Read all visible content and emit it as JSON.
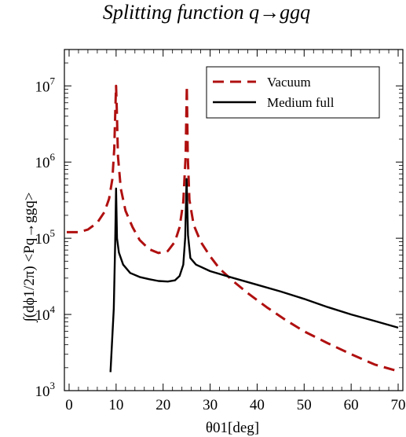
{
  "chart_data": {
    "type": "line",
    "title": "Splitting function q→ggq",
    "xlabel": "θ01[deg]",
    "ylabel": "∫(dϕ1/2π) <Pq→ggq>",
    "xlim": [
      -1,
      71
    ],
    "ylim": [
      1000,
      30000000
    ],
    "y_scale": "log",
    "grid": false,
    "legend_placement": "top-right",
    "x_ticks": [
      0,
      10,
      20,
      30,
      40,
      50,
      60,
      70
    ],
    "y_ticks": [
      {
        "value": 1000,
        "label": "10^3"
      },
      {
        "value": 10000,
        "label": "10^4"
      },
      {
        "value": 100000,
        "label": "10^5"
      },
      {
        "value": 1000000,
        "label": "10^6"
      },
      {
        "value": 10000000,
        "label": "10^7"
      }
    ],
    "series": [
      {
        "name": "Vacuum",
        "color": "#b01010",
        "style": "dashed",
        "points": [
          [
            -0.5,
            120000
          ],
          [
            2,
            120000
          ],
          [
            4,
            130000
          ],
          [
            6,
            160000
          ],
          [
            7.5,
            220000
          ],
          [
            8.5,
            330000
          ],
          [
            9.2,
            600000
          ],
          [
            9.6,
            1500000
          ],
          [
            9.85,
            5000000
          ],
          [
            10,
            10000000
          ],
          [
            10.15,
            5000000
          ],
          [
            10.4,
            1200000
          ],
          [
            11,
            450000
          ],
          [
            12,
            230000
          ],
          [
            13.5,
            140000
          ],
          [
            15,
            95000
          ],
          [
            17,
            72000
          ],
          [
            19,
            64000
          ],
          [
            21,
            68000
          ],
          [
            22.5,
            90000
          ],
          [
            23.5,
            140000
          ],
          [
            24.3,
            300000
          ],
          [
            24.8,
            1200000
          ],
          [
            25.05,
            10000000
          ],
          [
            25.25,
            1200000
          ],
          [
            25.6,
            320000
          ],
          [
            26.5,
            150000
          ],
          [
            28,
            90000
          ],
          [
            30,
            58000
          ],
          [
            32,
            40000
          ],
          [
            35,
            27000
          ],
          [
            38,
            19000
          ],
          [
            42,
            12500
          ],
          [
            46,
            8500
          ],
          [
            50,
            6000
          ],
          [
            55,
            4200
          ],
          [
            60,
            3000
          ],
          [
            65,
            2200
          ],
          [
            70,
            1800
          ]
        ]
      },
      {
        "name": "Medium full",
        "color": "#000000",
        "style": "solid",
        "points": [
          [
            8.8,
            1750
          ],
          [
            9.1,
            4000
          ],
          [
            9.5,
            12000
          ],
          [
            9.8,
            90000
          ],
          [
            10,
            450000
          ],
          [
            10.2,
            100000
          ],
          [
            10.6,
            65000
          ],
          [
            11.5,
            45000
          ],
          [
            13,
            35000
          ],
          [
            15,
            31000
          ],
          [
            17,
            29000
          ],
          [
            19,
            27500
          ],
          [
            21,
            27000
          ],
          [
            22.5,
            28000
          ],
          [
            23.5,
            32000
          ],
          [
            24.3,
            45000
          ],
          [
            24.7,
            100000
          ],
          [
            25,
            600000
          ],
          [
            25.3,
            110000
          ],
          [
            25.8,
            55000
          ],
          [
            27,
            45000
          ],
          [
            30,
            37000
          ],
          [
            35,
            30000
          ],
          [
            40,
            24500
          ],
          [
            45,
            20000
          ],
          [
            50,
            16000
          ],
          [
            55,
            12500
          ],
          [
            60,
            10000
          ],
          [
            65,
            8200
          ],
          [
            70,
            6700
          ]
        ]
      }
    ]
  }
}
